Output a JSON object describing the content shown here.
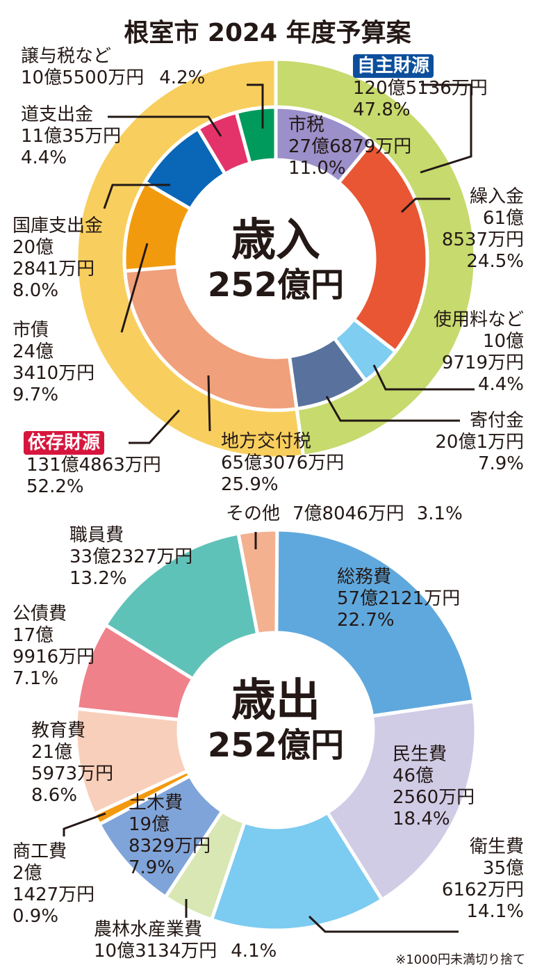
{
  "title": "根室市 2024 年度予算案",
  "note": "※1000円未満切り捨て",
  "chart_data": [
    {
      "type": "pie",
      "title": "歳入",
      "total": "252億円",
      "outer_ring": [
        {
          "name": "自主財源",
          "amount": "120億5136万円",
          "percent": 47.8,
          "percent_label": "47.8%",
          "color": "#c6da6e",
          "badge_color": "#0b4f9c"
        },
        {
          "name": "依存財源",
          "amount": "131億4863万円",
          "percent": 52.2,
          "percent_label": "52.2%",
          "color": "#f8cf5e",
          "badge_color": "#d7163d"
        }
      ],
      "inner_ring": [
        {
          "name": "市税",
          "amount": "27億6879万円",
          "percent": 11.0,
          "percent_label": "11.0%",
          "color": "#9b90c9"
        },
        {
          "name": "繰入金",
          "amount_1": "61億",
          "amount_2": "8537万円",
          "percent": 24.5,
          "percent_label": "24.5%",
          "color": "#e85634"
        },
        {
          "name": "使用料など",
          "amount_1": "10億",
          "amount_2": "9719万円",
          "percent": 4.4,
          "percent_label": "4.4%",
          "color": "#7fcdf1"
        },
        {
          "name": "寄付金",
          "amount": "20億1万円",
          "percent": 7.9,
          "percent_label": "7.9%",
          "color": "#58729d"
        },
        {
          "name": "地方交付税",
          "amount": "65億3076万円",
          "percent": 25.9,
          "percent_label": "25.9%",
          "color": "#f0a07a"
        },
        {
          "name": "市債",
          "amount_1": "24億",
          "amount_2": "3410万円",
          "percent": 9.7,
          "percent_label": "9.7%",
          "color": "#f29a0e"
        },
        {
          "name": "国庫支出金",
          "amount_1": "20億",
          "amount_2": "2841万円",
          "percent": 8.0,
          "percent_label": "8.0%",
          "color": "#0a66b6"
        },
        {
          "name": "道支出金",
          "amount": "11億35万円",
          "percent": 4.4,
          "percent_label": "4.4%",
          "color": "#e4336b"
        },
        {
          "name": "譲与税など",
          "amount": "10億5500万円",
          "percent": 4.2,
          "percent_label": "4.2%",
          "color": "#009b5c"
        }
      ]
    },
    {
      "type": "pie",
      "title": "歳出",
      "total": "252億円",
      "slices": [
        {
          "name": "総務費",
          "amount": "57億2121万円",
          "percent": 22.7,
          "percent_label": "22.7%",
          "color": "#5fa8dd"
        },
        {
          "name": "民生費",
          "amount_1": "46億",
          "amount_2": "2560万円",
          "percent": 18.4,
          "percent_label": "18.4%",
          "color": "#d0cce6"
        },
        {
          "name": "衛生費",
          "amount_1": "35億",
          "amount_2": "6162万円",
          "percent": 14.1,
          "percent_label": "14.1%",
          "color": "#7ccbf1"
        },
        {
          "name": "農林水産業費",
          "amount": "10億3134万円",
          "percent": 4.1,
          "percent_label": "4.1%",
          "color": "#d8e7b3"
        },
        {
          "name": "土木費",
          "amount_1": "19億",
          "amount_2": "8329万円",
          "percent": 7.9,
          "percent_label": "7.9%",
          "color": "#7fa4d9"
        },
        {
          "name": "商工費",
          "amount_1": "2億",
          "amount_2": "1427万円",
          "percent": 0.9,
          "percent_label": "0.9%",
          "color": "#f29a0e"
        },
        {
          "name": "教育費",
          "amount_1": "21億",
          "amount_2": "5973万円",
          "percent": 8.6,
          "percent_label": "8.6%",
          "color": "#f8cfba"
        },
        {
          "name": "公債費",
          "amount_1": "17億",
          "amount_2": "9916万円",
          "percent": 7.1,
          "percent_label": "7.1%",
          "color": "#ee818a"
        },
        {
          "name": "職員費",
          "amount": "33億2327万円",
          "percent": 13.2,
          "percent_label": "13.2%",
          "color": "#5fc2b8"
        },
        {
          "name": "その他",
          "amount": "7億8046万円",
          "percent": 3.1,
          "percent_label": "3.1%",
          "color": "#f3b190"
        }
      ]
    }
  ]
}
